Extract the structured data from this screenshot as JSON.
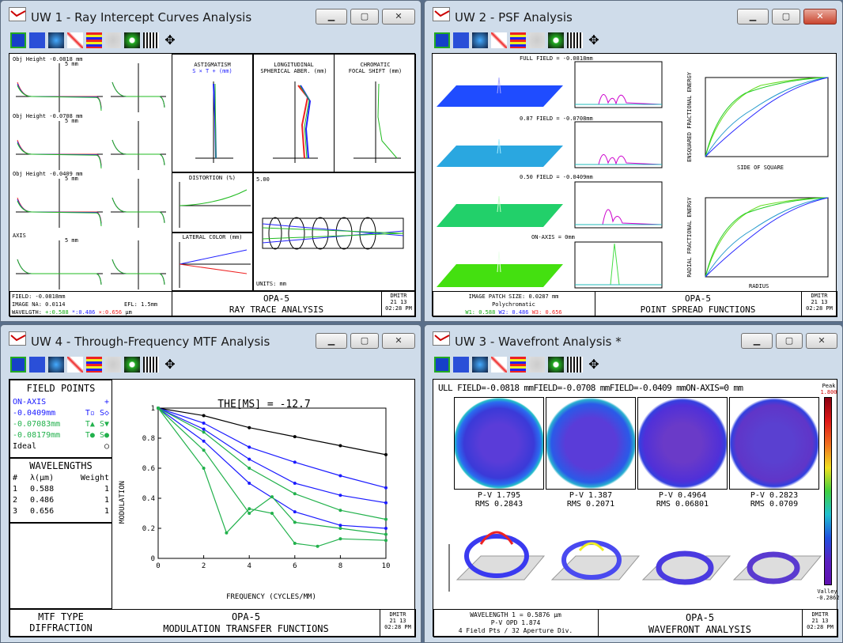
{
  "uw1": {
    "title": "UW 1 - Ray Intercept Curves Analysis",
    "fields": [
      "Obj Height -0.0818 mm",
      "Obj Height -0.0708 mm",
      "Obj Height -0.0409 mm",
      "AXIS"
    ],
    "scale": "5 mm",
    "astig_title1": "ASTIGMATISM",
    "astig_title2": "S × T + (mm)",
    "long_title1": "LONGITUDINAL",
    "long_title2": "SPHERICAL ABER. (mm)",
    "chrom_title1": "CHROMATIC",
    "chrom_title2": "FOCAL SHIFT (mm)",
    "dist_title": "DISTORTION (%)",
    "lat_title": "LATERAL COLOR (mm)",
    "units": "UNITS: mm",
    "lens_scale": "5.00",
    "footer": {
      "field": "FIELD: -0.0818mm",
      "na": "IMAGE NA: 0.0114",
      "efl": "EFL: 1.5mm",
      "wl_prefix": "WAVELGTH:",
      "wl1": "+:0.588",
      "wl2": "*:0.486",
      "wl3": "×:0.656",
      "wl_unit": "µm",
      "lens": "OPA-5",
      "analysis": "RAY TRACE ANALYSIS",
      "user": "DMITR",
      "date": "21  13",
      "time": "02:28 PM"
    }
  },
  "uw2": {
    "title": "UW 2 - PSF Analysis",
    "rows": [
      "FULL FIELD = -0.0818mm",
      "0.87 FIELD = -0.0708mm",
      "0.50 FIELD = -0.0409mm",
      "ON-AXIS = 0mm"
    ],
    "ens_label": "ENSQUARED FRACTIONAL ENERGY",
    "ens_x": "SIDE OF SQUARE",
    "rad_label": "RADIAL FRACTIONAL ENERGY",
    "rad_x": "RADIUS",
    "footer": {
      "patch": "IMAGE PATCH SIZE: 0.0287 mm",
      "poly": "Polychromatic",
      "w1": "W1: 0.588",
      "w2": "W2: 0.486",
      "w3": "W3: 0.656",
      "lens": "OPA-5",
      "analysis": "POINT SPREAD FUNCTIONS",
      "user": "DMITR",
      "date": "21  13",
      "time": "02:28 PM"
    }
  },
  "uw4": {
    "title": "UW 4 - Through-Frequency MTF Analysis",
    "fp_title": "FIELD POINTS",
    "fp": [
      {
        "label": "ON-AXIS",
        "mark": "+",
        "color": "#1a1aff"
      },
      {
        "label": "-0.0409mm",
        "mark": "T▫ S◇",
        "color": "#1a1aff"
      },
      {
        "label": "-0.07083mm",
        "mark": "T▲ S▼",
        "color": "#22b14c"
      },
      {
        "label": "-0.08179mm",
        "mark": "T● S●",
        "color": "#22b14c"
      },
      {
        "label": "Ideal",
        "mark": "○",
        "color": "#000"
      }
    ],
    "wl_title": "WAVELENGTHS",
    "wl_h": [
      "#",
      "λ(µm)",
      "Weight"
    ],
    "wl": [
      [
        "1",
        "0.588",
        "1"
      ],
      [
        "2",
        "0.486",
        "1"
      ],
      [
        "3",
        "0.656",
        "1"
      ]
    ],
    "mtf_type1": "MTF TYPE",
    "mtf_type2": "DIFFRACTION",
    "footer": {
      "lens": "OPA-5",
      "analysis": "MODULATION TRANSFER FUNCTIONS",
      "user": "DMITR",
      "date": "21  13",
      "time": "02:28 PM"
    }
  },
  "uw3": {
    "title": "UW 3 - Wavefront Analysis *",
    "header": "ULL FIELD=-0.0818 mmFIELD=-0.0708 mmFIELD=-0.0409 mmON-AXIS=0 mm",
    "pv": [
      "P-V 1.795",
      "P-V 1.387",
      "P-V 0.4964",
      "P-V 0.2823"
    ],
    "rms": [
      "RMS 0.2843",
      "RMS 0.2071",
      "RMS 0.06801",
      "RMS 0.0709"
    ],
    "peak": "Peak",
    "peak_v": "1.800",
    "valley": "Valley",
    "valley_v": "-0.2862",
    "footer": {
      "wl": "WAVELENGTH 1 = 0.5876 µm",
      "opd": "P-V OPD 1.874",
      "div": "4 Field Pts / 32 Aperture Div.",
      "lens": "OPA-5",
      "analysis": "WAVEFRONT ANALYSIS",
      "user": "DMITR",
      "date": "21  13",
      "time": "02:28 PM"
    }
  },
  "mtf_chart": {
    "type": "line",
    "title": "THE[MS] = -12.7",
    "xlabel": "FREQUENCY (CYCLES/MM)",
    "ylabel": "MODULATION",
    "xlim": [
      0,
      10
    ],
    "ylim": [
      0,
      1
    ],
    "xticks": [
      "0",
      "2",
      "4",
      "6",
      "8",
      "10"
    ],
    "yticks": [
      "0",
      "0.2",
      "0.4",
      "0.6",
      "0.8",
      "1"
    ],
    "series": [
      {
        "color": "#000000",
        "x": [
          0,
          2,
          4,
          6,
          8,
          10
        ],
        "y": [
          1,
          0.95,
          0.87,
          0.81,
          0.75,
          0.69
        ]
      },
      {
        "color": "#1a1aff",
        "x": [
          0,
          2,
          4,
          6,
          8,
          10
        ],
        "y": [
          1,
          0.9,
          0.74,
          0.64,
          0.55,
          0.47
        ]
      },
      {
        "color": "#1a1aff",
        "x": [
          0,
          2,
          4,
          6,
          8,
          10
        ],
        "y": [
          1,
          0.86,
          0.66,
          0.5,
          0.42,
          0.37
        ]
      },
      {
        "color": "#1a1aff",
        "x": [
          0,
          2,
          4,
          6,
          8,
          10
        ],
        "y": [
          1,
          0.78,
          0.5,
          0.31,
          0.22,
          0.2
        ]
      },
      {
        "color": "#22b14c",
        "x": [
          0,
          2,
          4,
          6,
          8,
          10
        ],
        "y": [
          1,
          0.84,
          0.6,
          0.43,
          0.32,
          0.26
        ]
      },
      {
        "color": "#22b14c",
        "x": [
          0,
          2,
          4,
          5,
          6,
          8,
          10
        ],
        "y": [
          1,
          0.72,
          0.3,
          0.41,
          0.24,
          0.2,
          0.16
        ]
      },
      {
        "color": "#22b14c",
        "x": [
          0,
          2,
          3,
          4,
          5,
          6,
          7,
          8,
          10
        ],
        "y": [
          1,
          0.6,
          0.17,
          0.33,
          0.3,
          0.1,
          0.08,
          0.13,
          0.12
        ]
      }
    ]
  }
}
